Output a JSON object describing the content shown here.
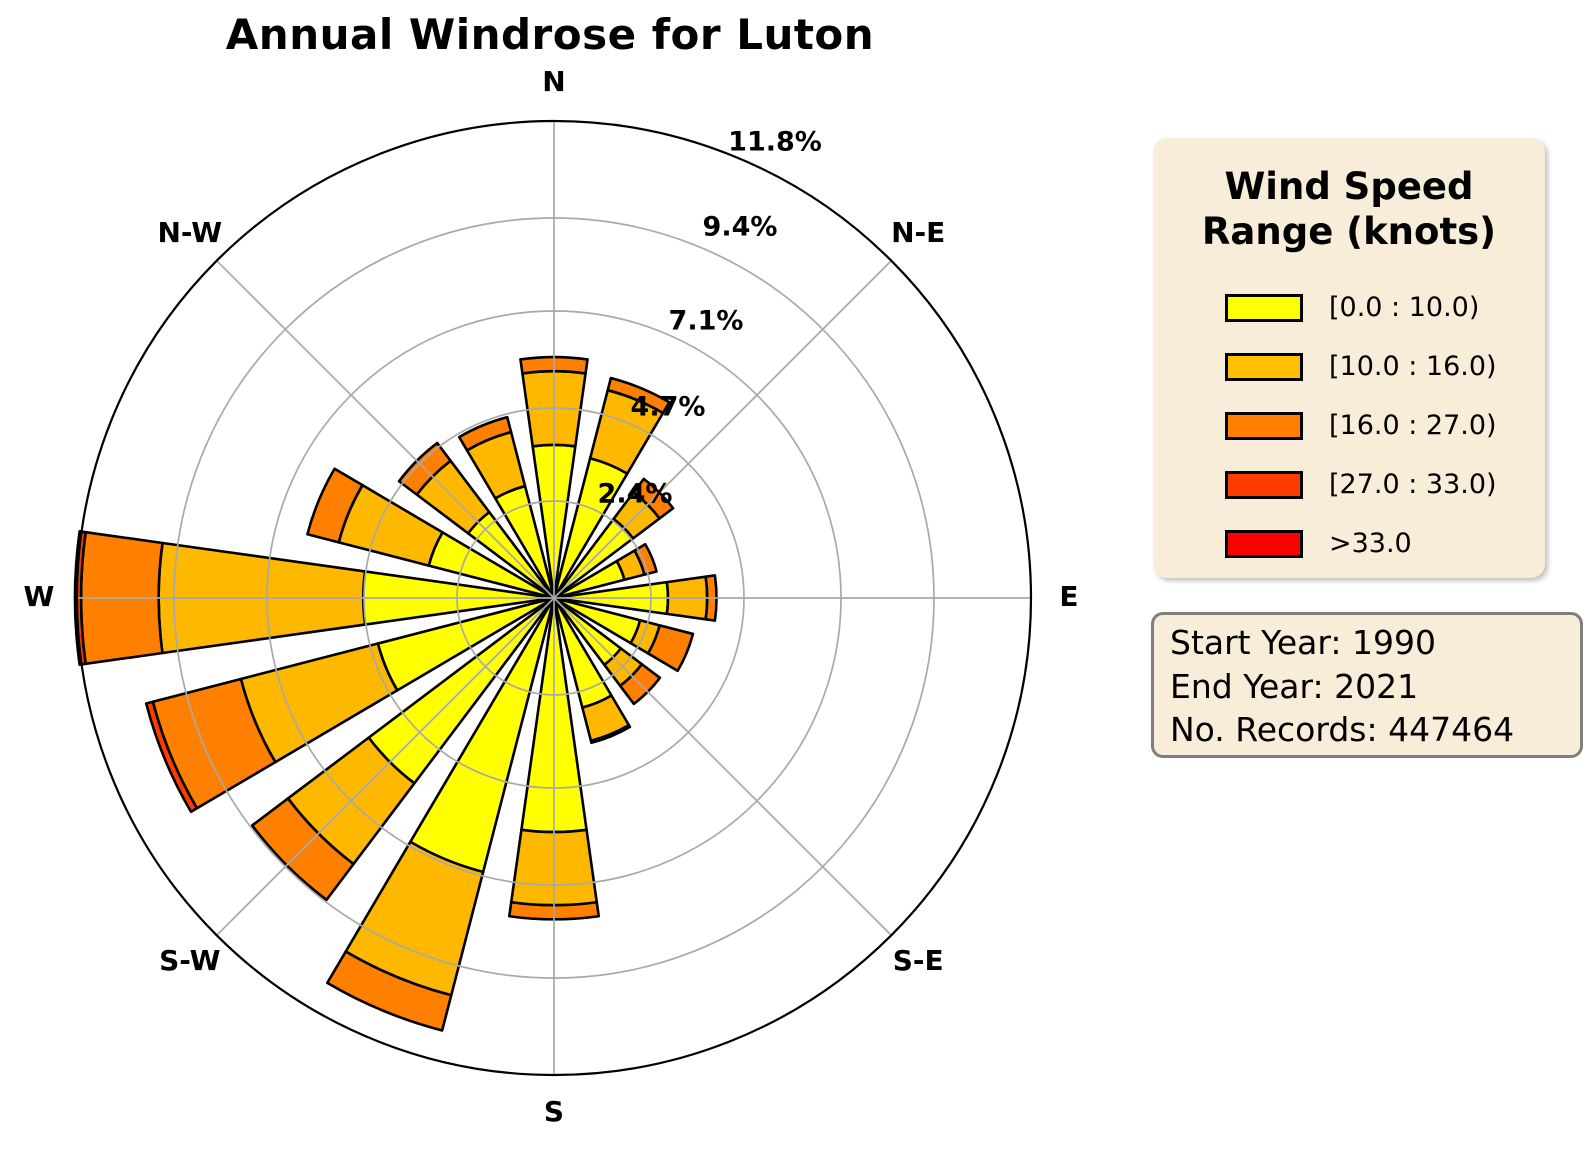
{
  "title": "Annual Windrose for Luton",
  "legend": {
    "title": "Wind Speed\nRange (knots)",
    "items": [
      {
        "label": "[0.0 : 10.0)",
        "color": "#FFFF00"
      },
      {
        "label": "[10.0 : 16.0)",
        "color": "#FFC000"
      },
      {
        "label": "[16.0 : 27.0)",
        "color": "#FF7F00"
      },
      {
        "label": "[27.0 : 33.0)",
        "color": "#FF3C00"
      },
      {
        "label": ">33.0",
        "color": "#FF0000"
      }
    ]
  },
  "info_box": {
    "lines": [
      "Start Year: 1990",
      "End Year: 2021",
      "No. Records: 447464"
    ]
  },
  "chart_data": {
    "type": "bar",
    "subtype": "polar-stacked-windrose",
    "title": "Annual Windrose for Luton",
    "units": "percent of records",
    "categories": [
      "N",
      "NNE",
      "NE",
      "ENE",
      "E",
      "ESE",
      "SE",
      "SSE",
      "S",
      "SSW",
      "SW",
      "WSW",
      "W",
      "WNW",
      "NW",
      "NNW"
    ],
    "sector_angle_deg": 22.5,
    "bar_width_deg": 16,
    "rmax": 11.8,
    "r_ticks": [
      {
        "label": "2.4%",
        "value": 2.4
      },
      {
        "label": "4.7%",
        "value": 4.7
      },
      {
        "label": "7.1%",
        "value": 7.1
      },
      {
        "label": "9.4%",
        "value": 9.4
      },
      {
        "label": "11.8%",
        "value": 11.8
      }
    ],
    "compass_labels": [
      {
        "label": "N",
        "angle": 0
      },
      {
        "label": "N-E",
        "angle": 45
      },
      {
        "label": "E",
        "angle": 90
      },
      {
        "label": "S-E",
        "angle": 135
      },
      {
        "label": "S",
        "angle": 180
      },
      {
        "label": "S-W",
        "angle": 225
      },
      {
        "label": "W",
        "angle": 270
      },
      {
        "label": "N-W",
        "angle": 315
      }
    ],
    "series": [
      {
        "name": "[0.0 : 10.0)",
        "color": "#FFFF00",
        "values": [
          3.79,
          3.57,
          2.45,
          1.8,
          2.82,
          2.2,
          2.07,
          2.8,
          5.79,
          7.0,
          5.74,
          4.5,
          4.72,
          3.2,
          2.66,
          2.86
        ]
      },
      {
        "name": "[10.0 : 16.0)",
        "color": "#FFB800",
        "values": [
          1.82,
          1.74,
          0.82,
          0.51,
          0.97,
          0.5,
          0.65,
          0.85,
          1.81,
          3.15,
          2.5,
          3.5,
          5.06,
          2.3,
          1.59,
          1.38
        ]
      },
      {
        "name": "[16.0 : 27.0)",
        "color": "#FF7F00",
        "values": [
          0.35,
          0.31,
          0.42,
          0.31,
          0.23,
          0.85,
          0.56,
          0.05,
          0.35,
          0.9,
          1.11,
          2.25,
          1.92,
          0.8,
          0.55,
          0.38
        ]
      },
      {
        "name": "[27.0 : 33.0)",
        "color": "#FF3C00",
        "values": [
          0,
          0,
          0,
          0,
          0,
          0,
          0,
          0,
          0,
          0,
          0,
          0.17,
          0.15,
          0,
          0,
          0
        ]
      },
      {
        "name": ">33.0",
        "color": "#FF0000",
        "values": [
          0,
          0,
          0,
          0,
          0,
          0,
          0,
          0,
          0,
          0,
          0,
          0,
          0,
          0,
          0,
          0
        ]
      }
    ],
    "grid": true,
    "legend_position": "right"
  },
  "colors": {
    "panel_bg": "#F7EDD9",
    "grid": "#A9A9A9",
    "outer_ring": "#000000",
    "bar_edge": "#000000",
    "info_border": "#7F7F7F"
  }
}
